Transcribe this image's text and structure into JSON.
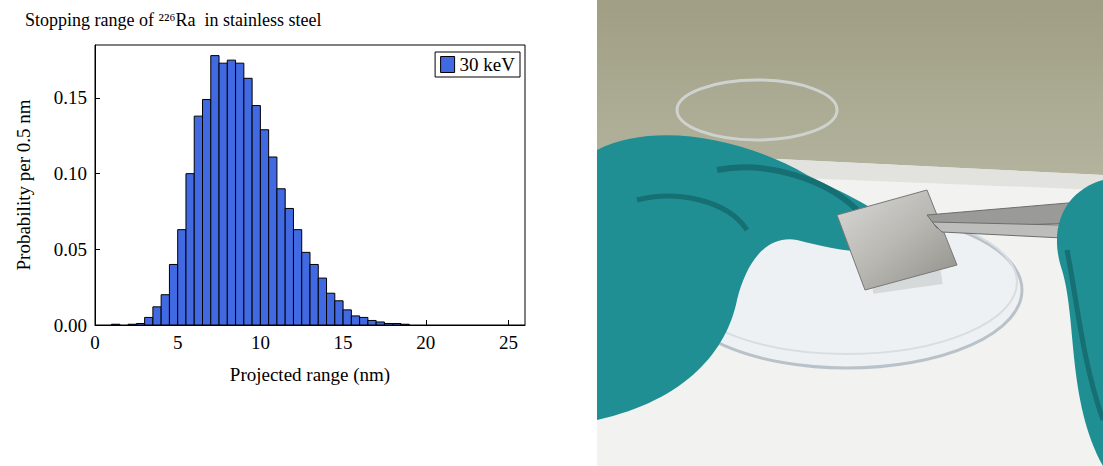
{
  "chart_data": {
    "type": "histogram",
    "title": "Stopping range of ²²⁶Ra  in stainless steel",
    "x_label": "Projected range (nm)",
    "y_label": "Probability per 0.5 nm",
    "bins": [
      0,
      0.5,
      1,
      1.5,
      2,
      2.5,
      3,
      3.5,
      4,
      4.5,
      5,
      5.5,
      6,
      6.5,
      7,
      7.5,
      8,
      8.5,
      9,
      9.5,
      10,
      10.5,
      11,
      11.5,
      12,
      12.5,
      13,
      13.5,
      14,
      14.5,
      15,
      15.5,
      16,
      16.5,
      17,
      17.5,
      18,
      18.5,
      19,
      19.5,
      20,
      20.5,
      21,
      21.5,
      22,
      22.5,
      23,
      23.5,
      24,
      24.5,
      25,
      25.5,
      26
    ],
    "series": [
      {
        "name": "30 keV",
        "color": "#4169e1",
        "values": [
          0,
          0,
          0.0005,
          0,
          0.0005,
          0.001,
          0.005,
          0.012,
          0.02,
          0.04,
          0.063,
          0.1,
          0.138,
          0.149,
          0.178,
          0.173,
          0.175,
          0.173,
          0.163,
          0.145,
          0.129,
          0.111,
          0.09,
          0.077,
          0.063,
          0.048,
          0.04,
          0.031,
          0.021,
          0.016,
          0.01,
          0.006,
          0.005,
          0.003,
          0.002,
          0.001,
          0.001,
          0.0005,
          0,
          0,
          0,
          0,
          0,
          0,
          0,
          0,
          0,
          0,
          0,
          0,
          0,
          0
        ]
      }
    ],
    "xlim": [
      0,
      26
    ],
    "xticks": [
      0,
      5,
      10,
      15,
      20,
      25
    ],
    "ylim": [
      0,
      0.185
    ],
    "yticks": [
      {
        "value": 0,
        "label": "0.00"
      },
      {
        "value": 0.05,
        "label": "0.05"
      },
      {
        "value": 0.1,
        "label": "0.10"
      },
      {
        "value": 0.15,
        "label": "0.15"
      }
    ],
    "legend": "upper right",
    "grid": false
  }
}
